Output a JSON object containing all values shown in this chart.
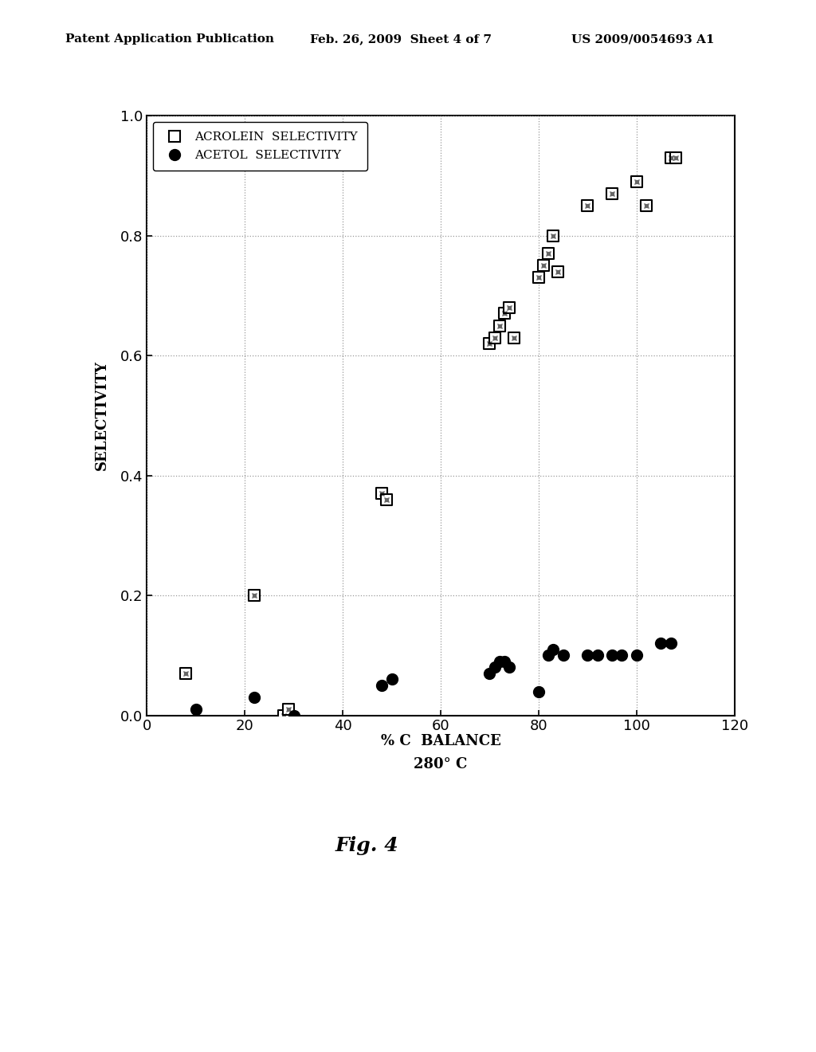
{
  "acrolein_x": [
    8,
    22,
    28,
    29,
    48,
    49,
    70,
    71,
    72,
    73,
    74,
    75,
    80,
    81,
    82,
    83,
    84,
    90,
    95,
    100,
    102,
    107,
    108
  ],
  "acrolein_y": [
    0.07,
    0.2,
    0.0,
    0.01,
    0.37,
    0.36,
    0.62,
    0.63,
    0.65,
    0.67,
    0.68,
    0.63,
    0.73,
    0.75,
    0.77,
    0.8,
    0.74,
    0.85,
    0.87,
    0.89,
    0.85,
    0.93,
    0.93
  ],
  "acetol_x": [
    10,
    22,
    30,
    48,
    50,
    70,
    71,
    72,
    73,
    74,
    80,
    82,
    83,
    85,
    90,
    92,
    95,
    97,
    100,
    105,
    107
  ],
  "acetol_y": [
    0.01,
    0.03,
    0.0,
    0.05,
    0.06,
    0.07,
    0.08,
    0.09,
    0.09,
    0.08,
    0.04,
    0.1,
    0.11,
    0.1,
    0.1,
    0.1,
    0.1,
    0.1,
    0.1,
    0.12,
    0.12
  ],
  "xlabel_line1": "% C  BALANCE",
  "xlabel_line2": "280° C",
  "ylabel": "SELECTIVITY",
  "xlim": [
    0,
    120
  ],
  "ylim": [
    0.0,
    1.0
  ],
  "xticks": [
    0,
    20,
    40,
    60,
    80,
    100,
    120
  ],
  "yticks": [
    0.0,
    0.2,
    0.4,
    0.6,
    0.8,
    1.0
  ],
  "header_left": "Patent Application Publication",
  "header_center": "Feb. 26, 2009  Sheet 4 of 7",
  "header_right": "US 2009/0054693 A1",
  "background_color": "#ffffff",
  "acrolein_label": "ACROLEIN  SELECTIVITY",
  "acetol_label": "ACETOL  SELECTIVITY",
  "fig4_label": "Fig. 4"
}
